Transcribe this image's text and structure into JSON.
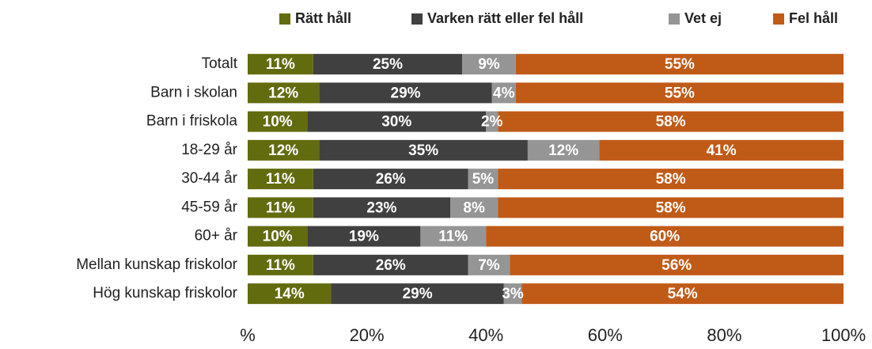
{
  "chart_data": {
    "type": "stacked_barh",
    "categories": [
      "Totalt",
      "Barn i skolan",
      "Barn i friskola",
      "18-29 år",
      "30-44 år",
      "45-59 år",
      "60+ år",
      "Mellan kunskap friskolor",
      "Hög kunskap friskolor"
    ],
    "series": [
      {
        "name": "Rätt håll",
        "color": "#636b0f",
        "values": [
          11,
          12,
          10,
          12,
          11,
          11,
          10,
          11,
          14
        ],
        "value_labels": [
          "11%",
          "12%",
          "10%",
          "12%",
          "11%",
          "11%",
          "10%",
          "11%",
          "14%"
        ]
      },
      {
        "name": "Varken rätt eller fel håll",
        "color": "#404040",
        "values": [
          25,
          29,
          30,
          35,
          26,
          23,
          19,
          26,
          29
        ],
        "value_labels": [
          "25%",
          "29%",
          "30%",
          "35%",
          "26%",
          "23%",
          "19%",
          "26%",
          "29%"
        ]
      },
      {
        "name": "Vet ej",
        "color": "#959595",
        "values": [
          9,
          4,
          2,
          12,
          5,
          8,
          11,
          7,
          3
        ],
        "value_labels": [
          "9%",
          "4%",
          "2%",
          "12%",
          "5%",
          "8%",
          "11%",
          "7%",
          "3%"
        ]
      },
      {
        "name": "Fel håll",
        "color": "#c05a17",
        "values": [
          55,
          55,
          58,
          41,
          58,
          58,
          60,
          56,
          54
        ],
        "value_labels": [
          "55%",
          "55%",
          "58%",
          "41%",
          "58%",
          "58%",
          "60%",
          "56%",
          "54%"
        ]
      }
    ],
    "xlim": [
      0,
      100
    ],
    "xticks": [
      {
        "value": 0,
        "label": "%"
      },
      {
        "value": 20,
        "label": "20%"
      },
      {
        "value": 40,
        "label": "40%"
      },
      {
        "value": 60,
        "label": "60%"
      },
      {
        "value": 80,
        "label": "80%"
      },
      {
        "value": 100,
        "label": "100%"
      }
    ],
    "legend": "top"
  }
}
